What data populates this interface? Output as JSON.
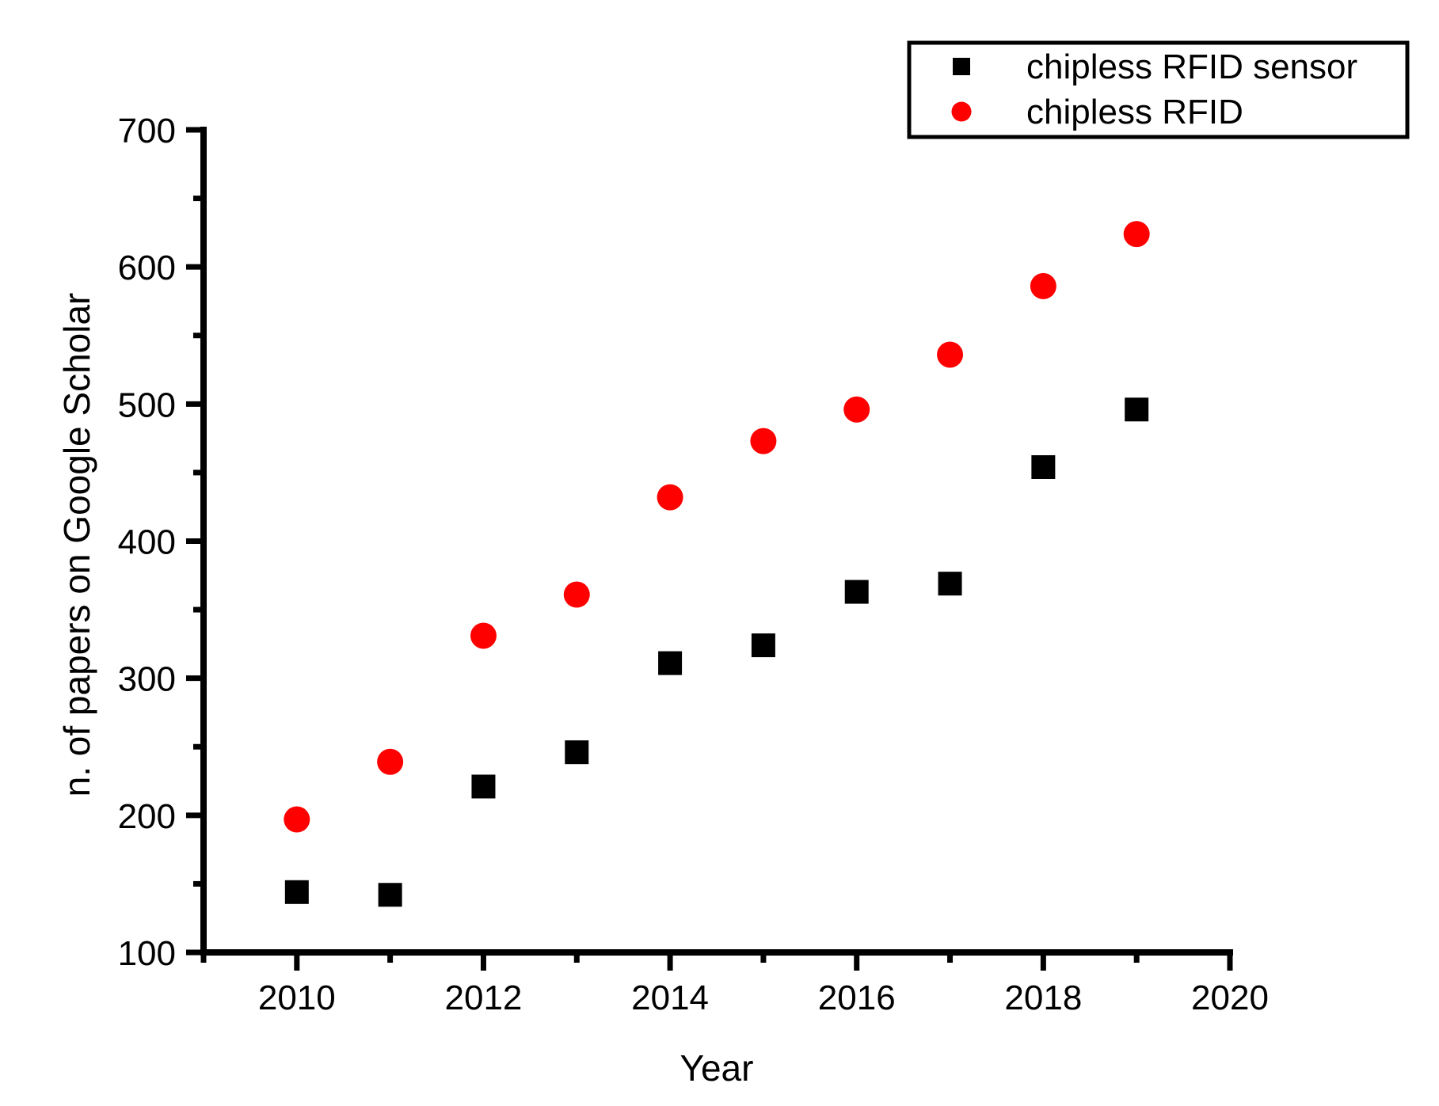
{
  "chart_data": {
    "type": "scatter",
    "title": "",
    "xlabel": "Year",
    "ylabel": "n. of papers on Google Scholar",
    "background": "#ffffff",
    "axis_color": "#000000",
    "grid": false,
    "legend_position": "top-right",
    "x": [
      2010,
      2011,
      2012,
      2013,
      2014,
      2015,
      2016,
      2017,
      2018,
      2019
    ],
    "series": [
      {
        "name": "chipless RFID sensor",
        "marker": "square",
        "color": "#000000",
        "values": [
          144,
          142,
          221,
          246,
          311,
          324,
          363,
          369,
          454,
          496
        ]
      },
      {
        "name": "chipless RFID",
        "marker": "circle",
        "color": "#ff0000",
        "values": [
          197,
          239,
          331,
          361,
          432,
          473,
          496,
          536,
          586,
          624
        ]
      }
    ],
    "x_axis": {
      "min": 2009,
      "max": 2020,
      "major_ticks": [
        2010,
        2012,
        2014,
        2016,
        2018,
        2020
      ],
      "minor_ticks": [
        2009,
        2011,
        2013,
        2015,
        2017,
        2019
      ]
    },
    "y_axis": {
      "min": 100,
      "max": 700,
      "major_ticks": [
        100,
        200,
        300,
        400,
        500,
        600,
        700
      ],
      "minor_ticks": [
        150,
        250,
        350,
        450,
        550,
        650
      ]
    }
  }
}
